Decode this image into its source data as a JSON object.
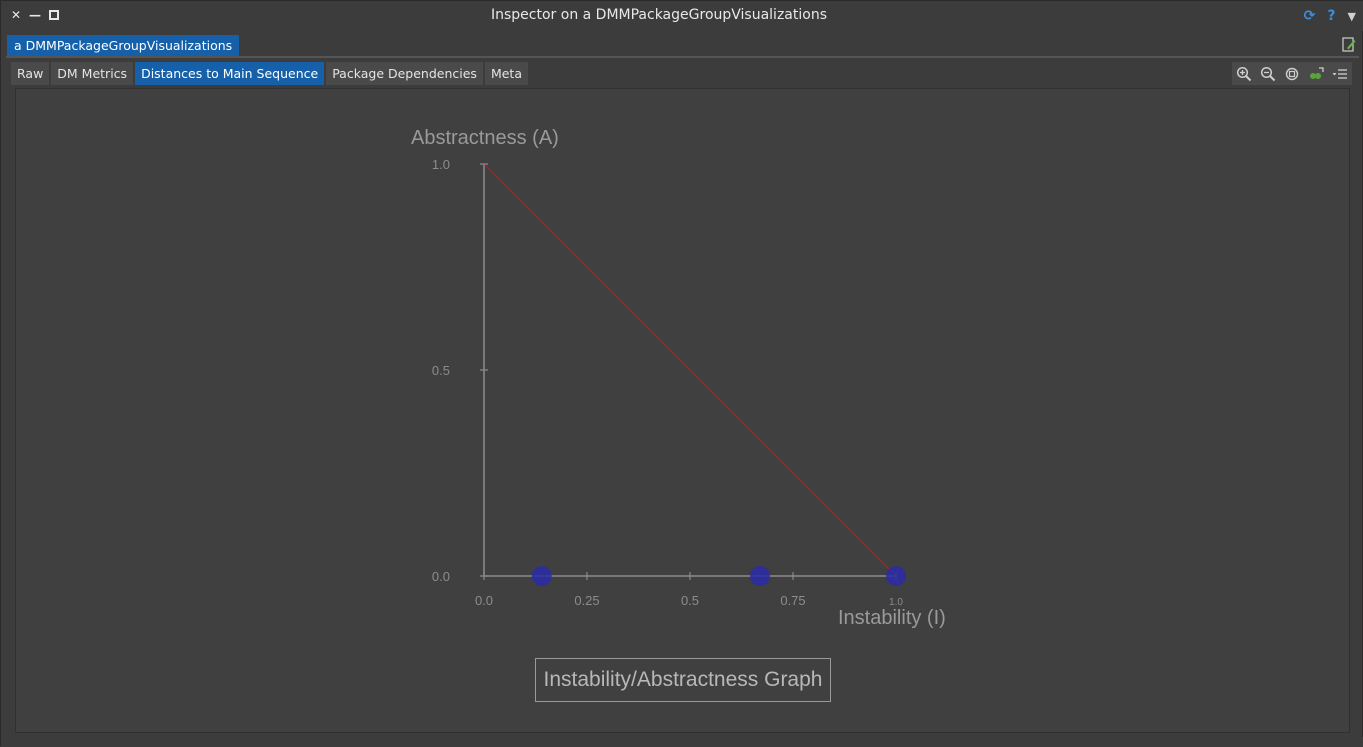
{
  "window": {
    "title": "Inspector on a DMMPackageGroupVisualizations"
  },
  "inspector": {
    "tab_label": "a DMMPackageGroupVisualizations"
  },
  "view_tabs": [
    {
      "label": "Raw",
      "active": false
    },
    {
      "label": "DM Metrics",
      "active": false
    },
    {
      "label": "Distances to Main Sequence",
      "active": true
    },
    {
      "label": "Package Dependencies",
      "active": false
    },
    {
      "label": "Meta",
      "active": false
    }
  ],
  "toolbar_icons": [
    "zoom-in-icon",
    "zoom-out-icon",
    "zoom-fit-icon",
    "export-icon",
    "menu-icon"
  ],
  "colors": {
    "accent": "#1560a8",
    "point": "#2c2ca8",
    "main_sequence": "#8a3232",
    "axis": "#8c8c8c"
  },
  "chart_data": {
    "type": "scatter",
    "title": "Instability/Abstractness Graph",
    "xlabel": "Instability (I)",
    "ylabel": "Abstractness (A)",
    "xlim": [
      0,
      1
    ],
    "ylim": [
      0,
      1
    ],
    "x_ticks": [
      "0.0",
      "0.25",
      "0.5",
      "0.75",
      "1.0"
    ],
    "y_ticks": [
      "1.0",
      "0.5",
      "0.0"
    ],
    "main_sequence": {
      "from": [
        0,
        1
      ],
      "to": [
        1,
        0
      ]
    },
    "points": [
      {
        "x": 0.14,
        "y": 0.0
      },
      {
        "x": 0.67,
        "y": 0.0
      },
      {
        "x": 1.0,
        "y": 0.0
      }
    ]
  }
}
